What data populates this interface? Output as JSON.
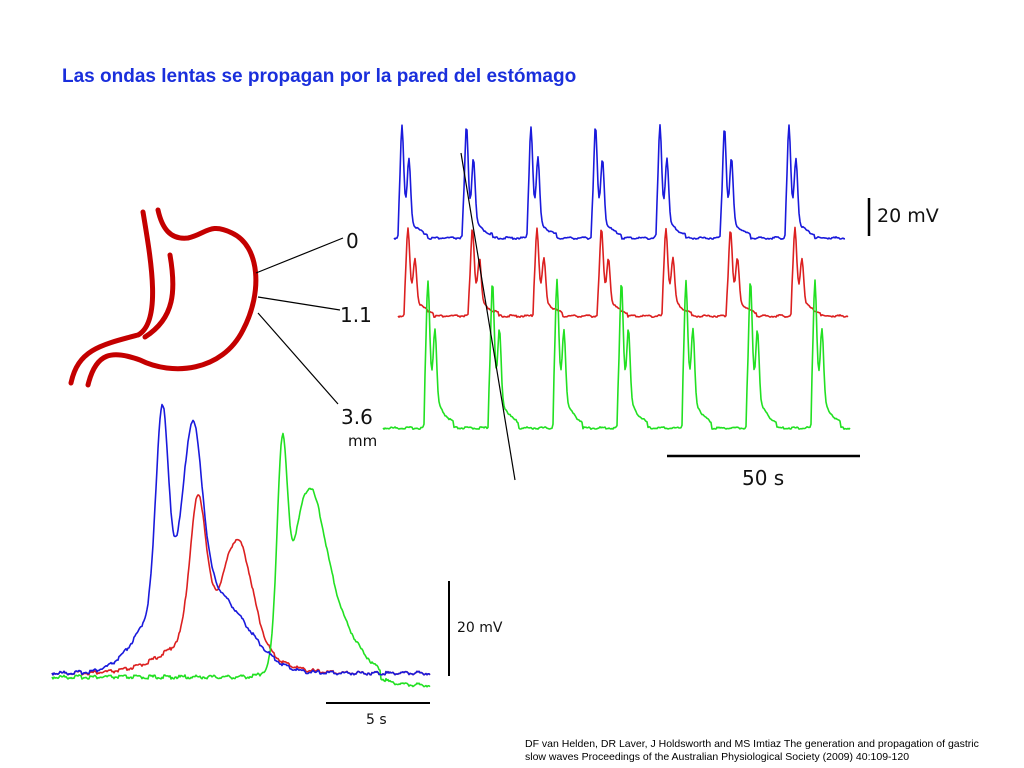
{
  "title": "Las ondas lentas se propagan por la pared del estómago",
  "colors": {
    "title": "#1a2fdc",
    "stomach": "#c40000",
    "site_0": "#1a1adc",
    "site_1_1": "#dc2020",
    "site_3_6": "#22e022"
  },
  "recording_sites": [
    {
      "label": "0",
      "color_key": "site_0"
    },
    {
      "label": "1.1",
      "color_key": "site_1_1"
    },
    {
      "label": "3.6",
      "color_key": "site_3_6"
    }
  ],
  "distance_unit": "mm",
  "upper_panel": {
    "voltage_scale_label": "20 mV",
    "time_scale_label": "50 s",
    "waves_per_trace": 7
  },
  "lower_panel": {
    "voltage_scale_label": "20 mV",
    "time_scale_label": "5 s"
  },
  "citation": "DF van Helden, DR Laver, J Holdsworth and MS Imtiaz The generation and propagation of gastric slow waves Proceedings of the Australian Physiological Society (2009) 40:109-120"
}
